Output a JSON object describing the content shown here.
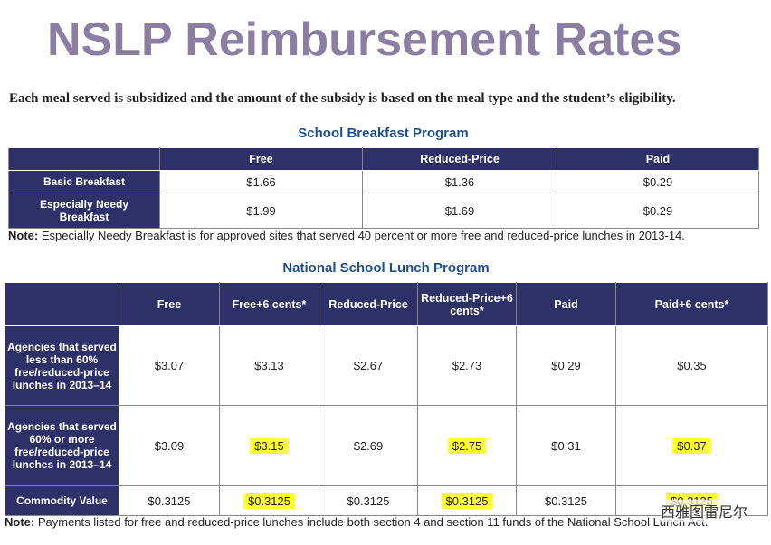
{
  "title": "NSLP Reimbursement Rates",
  "intro": "Each meal served is subsidized and the amount of the subsidy is based on the meal type and the student’s eligibility.",
  "breakfast": {
    "title": "School Breakfast Program",
    "headers": [
      "Free",
      "Reduced-Price",
      "Paid"
    ],
    "rows": [
      {
        "label": "Basic Breakfast",
        "values": [
          "$1.66",
          "$1.36",
          "$0.29"
        ]
      },
      {
        "label": "Especially Needy Breakfast",
        "values": [
          "$1.99",
          "$1.69",
          "$0.29"
        ]
      }
    ],
    "note_label": "Note:",
    "note": "Especially Needy Breakfast is for approved sites that served 40 percent or more free and reduced-price lunches in 2013-14."
  },
  "lunch": {
    "title": "National School Lunch Program",
    "headers": [
      "Free",
      "Free+6 cents*",
      "Reduced-Price",
      "Reduced-Price+6 cents*",
      "Paid",
      "Paid+6 cents*"
    ],
    "rows": [
      {
        "label": "Agencies that served less than 60% free/reduced-price lunches in 2013–14",
        "values": [
          "$3.07",
          "$3.13",
          "$2.67",
          "$2.73",
          "$0.29",
          "$0.35"
        ]
      },
      {
        "label": "Agencies that served 60% or more free/reduced-price lunches in 2013–14",
        "values": [
          "$3.09",
          "$3.15",
          "$2.69",
          "$2.75",
          "$0.31",
          "$0.37"
        ]
      },
      {
        "label": "Commodity Value",
        "values": [
          "$0.3125",
          "$0.3125",
          "$0.3125",
          "$0.3125",
          "$0.3125",
          "$0.3125"
        ]
      }
    ],
    "note_label": "Note:",
    "note": "Payments listed for free and reduced-price lunches include both section 4 and section 11 funds of the National School Lunch Act."
  },
  "watermark": "西雅图雷尼尔"
}
